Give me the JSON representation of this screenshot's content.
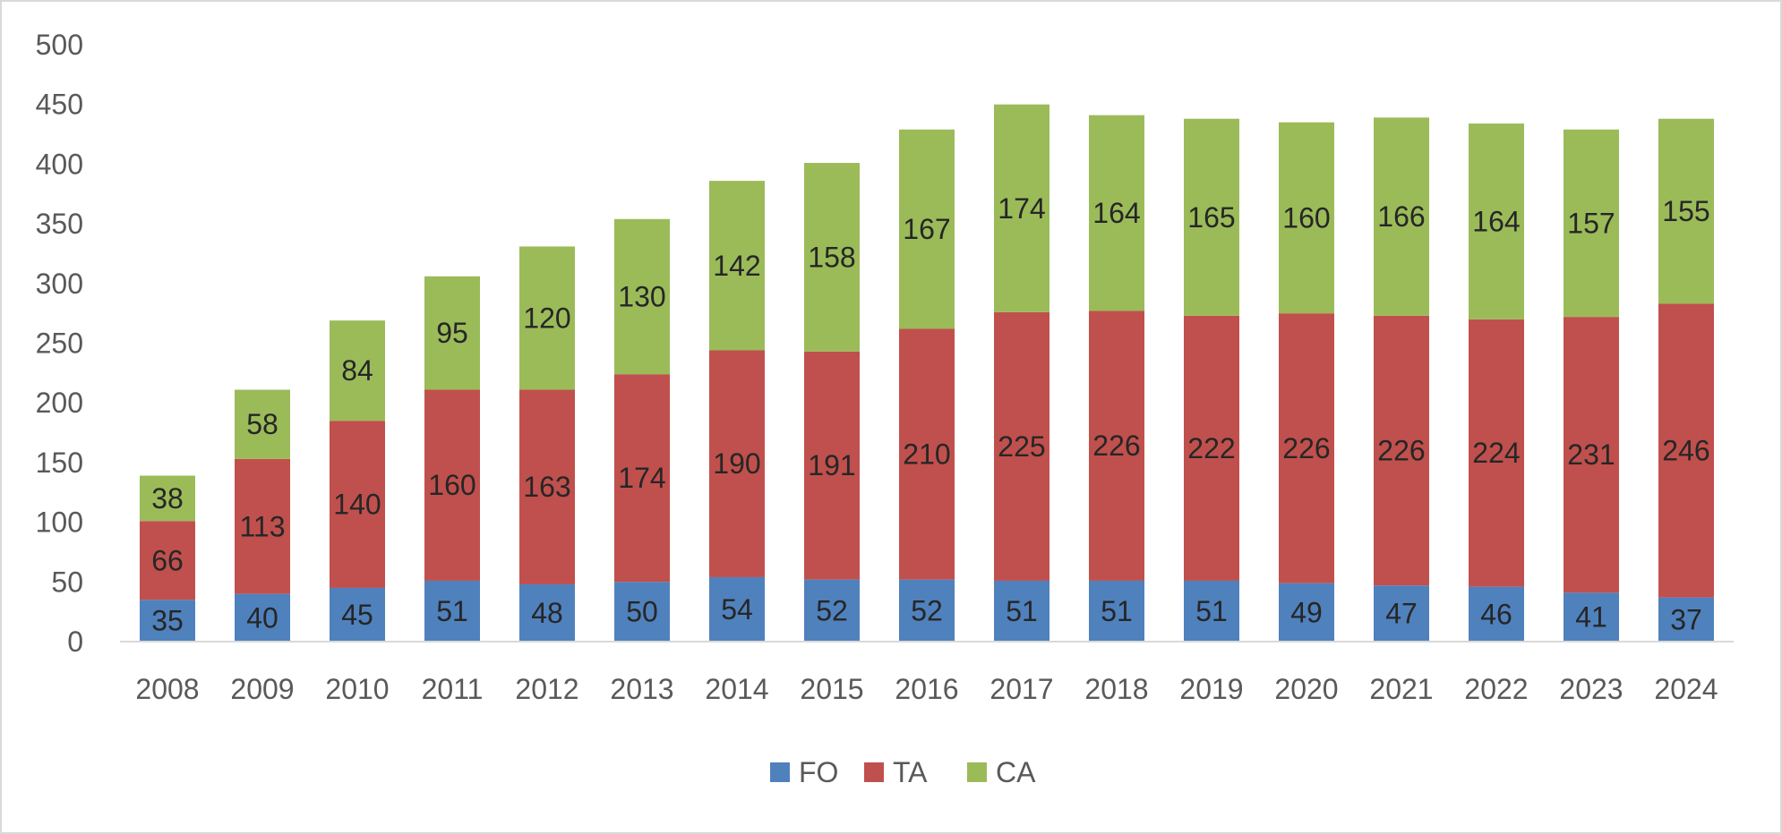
{
  "chart_data": {
    "type": "bar",
    "stacked": true,
    "categories": [
      "2008",
      "2009",
      "2010",
      "2011",
      "2012",
      "2013",
      "2014",
      "2015",
      "2016",
      "2017",
      "2018",
      "2019",
      "2020",
      "2021",
      "2022",
      "2023",
      "2024"
    ],
    "series": [
      {
        "name": "FO",
        "color": "#4f81bd",
        "values": [
          35,
          40,
          45,
          51,
          48,
          50,
          54,
          52,
          52,
          51,
          51,
          51,
          49,
          47,
          46,
          41,
          37
        ]
      },
      {
        "name": "TA",
        "color": "#c0504d",
        "values": [
          66,
          113,
          140,
          160,
          163,
          174,
          190,
          191,
          210,
          225,
          226,
          222,
          226,
          226,
          224,
          231,
          246
        ]
      },
      {
        "name": "CA",
        "color": "#9bbb59",
        "values": [
          38,
          58,
          84,
          95,
          120,
          130,
          142,
          158,
          167,
          174,
          164,
          165,
          160,
          166,
          164,
          157,
          155
        ]
      }
    ],
    "yticks": [
      "0",
      "50",
      "100",
      "150",
      "200",
      "250",
      "300",
      "350",
      "400",
      "450",
      "500"
    ],
    "ylim": [
      0,
      500
    ],
    "grid": false,
    "legend_position": "bottom",
    "data_labels": true
  }
}
